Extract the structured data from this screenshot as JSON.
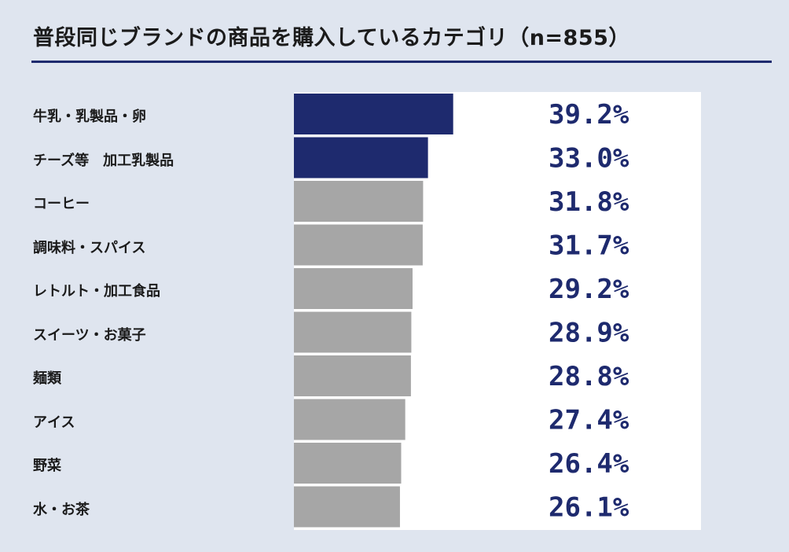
{
  "title": "普段同じブランドの商品を購入しているカテゴリ（n=855）",
  "colors": {
    "highlight": "#1e2a6e",
    "default": "#a6a6a6",
    "plot_bg": "#ffffff",
    "page_bg": "#dfe5ef",
    "value_text": "#1e2a6e"
  },
  "chart_data": {
    "type": "bar",
    "orientation": "horizontal",
    "title": "普段同じブランドの商品を購入しているカテゴリ（n=855）",
    "categories": [
      "牛乳・乳製品・卵",
      "チーズ等　加工乳製品",
      "コーヒー",
      "調味料・スパイス",
      "レトルト・加工食品",
      "スイーツ・お菓子",
      "麺類",
      "アイス",
      "野菜",
      "水・お茶"
    ],
    "values": [
      39.2,
      33.0,
      31.8,
      31.7,
      29.2,
      28.9,
      28.8,
      27.4,
      26.4,
      26.1
    ],
    "value_labels": [
      "39.2%",
      "33.0%",
      "31.8%",
      "31.7%",
      "29.2%",
      "28.9%",
      "28.8%",
      "27.4%",
      "26.4%",
      "26.1%"
    ],
    "unit": "%",
    "highlighted": [
      true,
      true,
      false,
      false,
      false,
      false,
      false,
      false,
      false,
      false
    ],
    "xlim": [
      0,
      100
    ],
    "grid": false,
    "legend": "none"
  }
}
